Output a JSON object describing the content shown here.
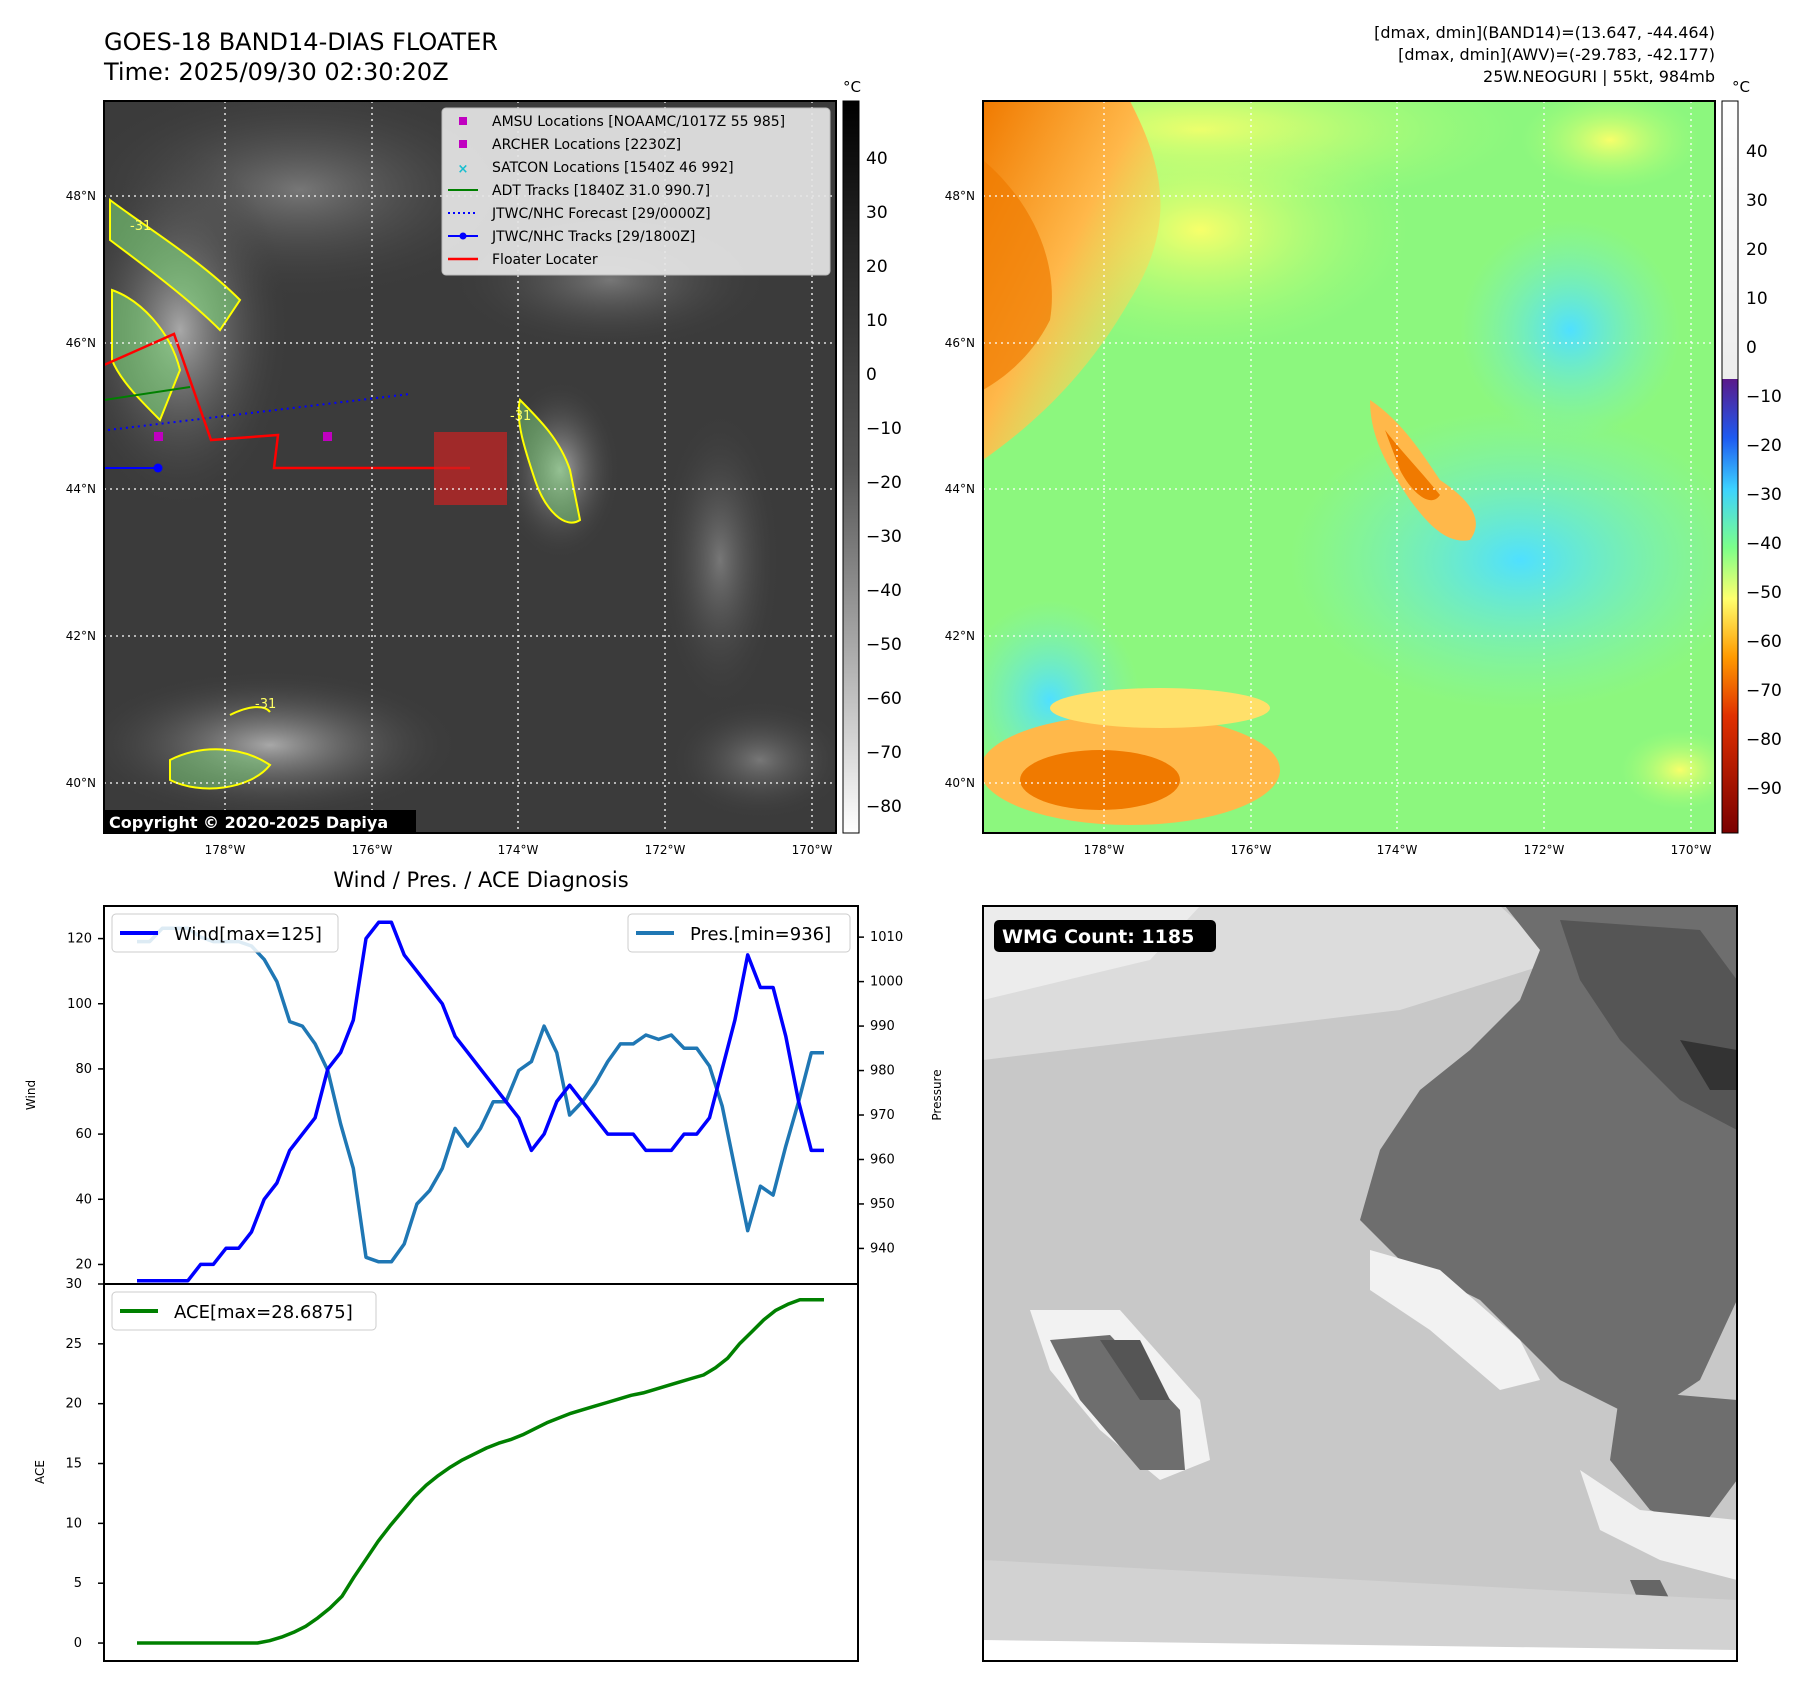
{
  "header": {
    "title": "GOES-18 BAND14-DIAS FLOATER",
    "time": "Time: 2025/09/30 02:30:20Z",
    "stats_line1": "[dmax, dmin](BAND14)=(13.647, -44.464)",
    "stats_line2": "[dmax, dmin](AWV)=(-29.783, -42.177)",
    "storm_line": "25W.NEOGURI | 55kt, 984mb"
  },
  "maps": {
    "lat_labels": [
      "48°N",
      "46°N",
      "44°N",
      "42°N",
      "40°N"
    ],
    "lon_labels": [
      "178°W",
      "176°W",
      "174°W",
      "172°W",
      "170°W"
    ],
    "copyright": "Copyright © 2020-2025 Dapiya",
    "contour_label": "-31",
    "cbar_unit": "°C",
    "ir_cbar_ticks": [
      "40",
      "30",
      "20",
      "10",
      "0",
      "−10",
      "−20",
      "−30",
      "−40",
      "−50",
      "−60",
      "−70",
      "−80"
    ],
    "color_cbar_ticks": [
      "40",
      "30",
      "20",
      "10",
      "0",
      "−10",
      "−20",
      "−30",
      "−40",
      "−50",
      "−60",
      "−70",
      "−80",
      "−90"
    ]
  },
  "legend": {
    "items": [
      {
        "label": "AMSU Locations [NOAAMC/1017Z 55 985]",
        "color": "#c000c0",
        "kind": "square"
      },
      {
        "label": "ARCHER Locations [2230Z]",
        "color": "#c000c0",
        "kind": "square"
      },
      {
        "label": "SATCON Locations [1540Z 46 992]",
        "color": "#17becf",
        "kind": "x"
      },
      {
        "label": "ADT Tracks [1840Z 31.0 990.7]",
        "color": "#008000",
        "kind": "line"
      },
      {
        "label": "JTWC/NHC Forecast [29/0000Z]",
        "color": "#0000ff",
        "kind": "dotted"
      },
      {
        "label": "JTWC/NHC Tracks [29/1800Z]",
        "color": "#0000ff",
        "kind": "line-dot"
      },
      {
        "label": "Floater Locater",
        "color": "#ff0000",
        "kind": "line"
      }
    ]
  },
  "diag": {
    "title": "Wind / Pres. / ACE Diagnosis",
    "wind_legend": "Wind[max=125]",
    "pres_legend": "Pres.[min=936]",
    "ace_legend": "ACE[max=28.6875]",
    "wind_axis_label": "Wind",
    "pres_axis_label": "Pressure",
    "ace_axis_label": "ACE"
  },
  "wmg": {
    "label": "WMG Count: 1185"
  },
  "chart_data": [
    {
      "type": "line",
      "title": "Wind / Pres. / ACE Diagnosis",
      "ylabel": "Wind",
      "ylim": [
        14,
        130
      ],
      "yticks": [
        20,
        40,
        60,
        80,
        100,
        120
      ],
      "series": [
        {
          "name": "Wind[max=125]",
          "color": "#0000ff",
          "values": [
            15,
            15,
            15,
            15,
            15,
            20,
            20,
            25,
            25,
            30,
            40,
            45,
            55,
            60,
            65,
            80,
            85,
            95,
            120,
            125,
            125,
            115,
            110,
            105,
            100,
            90,
            85,
            80,
            75,
            70,
            65,
            55,
            60,
            70,
            75,
            70,
            65,
            60,
            60,
            60,
            55,
            55,
            55,
            60,
            60,
            65,
            80,
            95,
            115,
            105,
            105,
            90,
            70,
            55,
            55
          ]
        },
        {
          "name": "Pres.[min=936]",
          "color": "#1f77b4",
          "axis": "right",
          "ylim": [
            932,
            1017
          ],
          "yticks": [
            940,
            950,
            960,
            970,
            980,
            990,
            1000,
            1010
          ],
          "values": [
            1009,
            1009,
            1012,
            1012,
            1012,
            1010,
            1009,
            1009,
            1009,
            1008,
            1005,
            1000,
            991,
            990,
            986,
            980,
            968,
            958,
            938,
            937,
            937,
            941,
            950,
            953,
            958,
            967,
            963,
            967,
            973,
            973,
            980,
            982,
            990,
            984,
            970,
            973,
            977,
            982,
            986,
            986,
            988,
            987,
            988,
            985,
            985,
            981,
            972,
            958,
            944,
            954,
            952,
            963,
            973,
            984,
            984
          ]
        }
      ]
    },
    {
      "type": "line",
      "ylabel": "ACE",
      "ylim": [
        -1.5,
        30
      ],
      "yticks": [
        0,
        5,
        10,
        15,
        20,
        25,
        30
      ],
      "series": [
        {
          "name": "ACE[max=28.6875]",
          "color": "#008000",
          "values": [
            0,
            0,
            0,
            0,
            0,
            0,
            0,
            0,
            0,
            0,
            0,
            0.2,
            0.5,
            0.9,
            1.4,
            2.1,
            2.9,
            3.9,
            5.5,
            7,
            8.5,
            9.8,
            11,
            12.2,
            13.2,
            14,
            14.7,
            15.3,
            15.8,
            16.3,
            16.7,
            17,
            17.4,
            17.9,
            18.4,
            18.8,
            19.2,
            19.5,
            19.8,
            20.1,
            20.4,
            20.7,
            20.9,
            21.2,
            21.5,
            21.8,
            22.1,
            22.4,
            23,
            23.8,
            25,
            26,
            27,
            27.8,
            28.3,
            28.6875,
            28.6875,
            28.6875
          ]
        }
      ]
    }
  ]
}
